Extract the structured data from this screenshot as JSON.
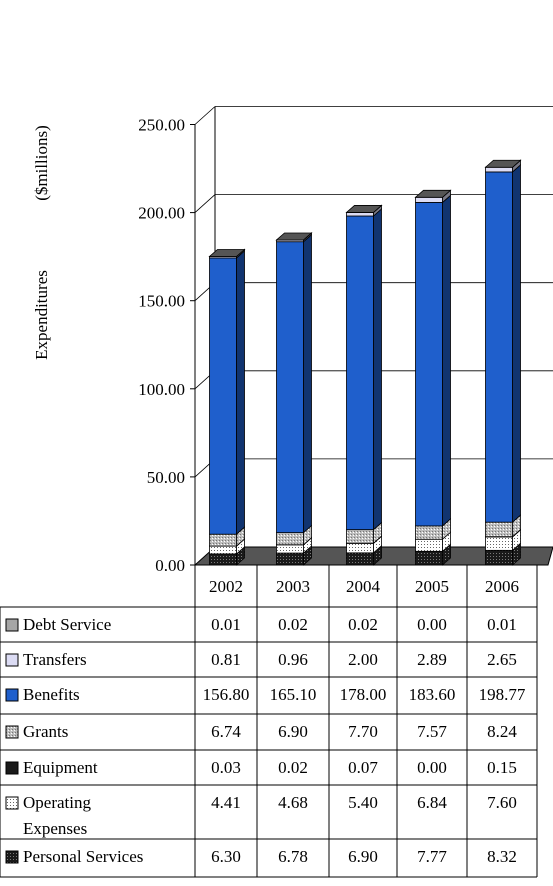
{
  "chart_data": {
    "type": "bar",
    "stacked": true,
    "three_d": true,
    "ylabel_parts": [
      "Expenditures",
      "($millions)"
    ],
    "ylim": [
      0,
      250
    ],
    "ytick_labels": [
      "0.00",
      "50.00",
      "100.00",
      "150.00",
      "200.00",
      "250.00"
    ],
    "categories": [
      "2002",
      "2003",
      "2004",
      "2005",
      "2006"
    ],
    "grid": true,
    "legend": "data-table-below",
    "series": [
      {
        "name": "Debt Service",
        "color": "#a6a6a6",
        "pattern": "none",
        "values": [
          0.01,
          0.02,
          0.02,
          0.0,
          0.01
        ]
      },
      {
        "name": "Transfers",
        "color": "#dcdcf4",
        "pattern": "none",
        "values": [
          0.81,
          0.96,
          2.0,
          2.89,
          2.65
        ]
      },
      {
        "name": "Benefits",
        "color": "#1f5fcc",
        "pattern": "none",
        "values": [
          156.8,
          165.1,
          178.0,
          183.6,
          198.77
        ]
      },
      {
        "name": "Grants",
        "color": "#bdbdbd",
        "pattern": "dots",
        "values": [
          6.74,
          6.9,
          7.7,
          7.57,
          8.24
        ]
      },
      {
        "name": "Equipment",
        "color": "#1a1a1a",
        "pattern": "none",
        "values": [
          0.03,
          0.02,
          0.07,
          0.0,
          0.15
        ]
      },
      {
        "name": "Operating Expenses",
        "label_lines": [
          "Operating",
          "Expenses"
        ],
        "color": "#ffffff",
        "pattern": "dots",
        "values": [
          4.41,
          4.68,
          5.4,
          6.84,
          7.6
        ]
      },
      {
        "name": "Personal Services",
        "color": "#1a1a1a",
        "pattern": "dots",
        "values": [
          6.3,
          6.78,
          6.9,
          7.77,
          8.32
        ]
      }
    ]
  }
}
